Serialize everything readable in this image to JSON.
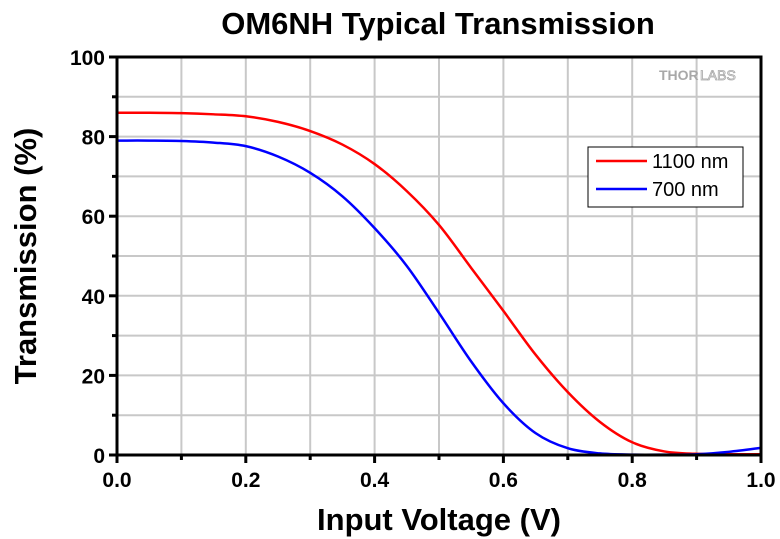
{
  "chart_data": {
    "type": "line",
    "title": "OM6NH Typical Transmission",
    "xlabel": "Input Voltage (V)",
    "ylabel": "Transmission (%)",
    "xlim": [
      0.0,
      1.0
    ],
    "ylim": [
      0,
      100
    ],
    "xticks": [
      "0.0",
      "0.2",
      "0.4",
      "0.6",
      "0.8",
      "1.0"
    ],
    "xtick_values": [
      0.0,
      0.2,
      0.4,
      0.6,
      0.8,
      1.0
    ],
    "yticks": [
      "0",
      "20",
      "40",
      "60",
      "80",
      "100"
    ],
    "ytick_values": [
      0,
      20,
      40,
      60,
      80,
      100
    ],
    "grid": true,
    "legend_position": "upper-right",
    "watermark": "THORLABS",
    "series": [
      {
        "name": "1100 nm",
        "color": "#ff0000",
        "x": [
          0.0,
          0.05,
          0.1,
          0.15,
          0.2,
          0.25,
          0.3,
          0.35,
          0.4,
          0.45,
          0.5,
          0.55,
          0.6,
          0.65,
          0.7,
          0.75,
          0.8,
          0.85,
          0.9,
          0.95,
          1.0
        ],
        "y": [
          86.0,
          86.0,
          85.9,
          85.6,
          85.1,
          83.7,
          81.4,
          78.0,
          73.1,
          66.3,
          57.8,
          47.0,
          36.2,
          25.2,
          15.8,
          8.3,
          3.2,
          0.9,
          0.3,
          0.2,
          0.2
        ]
      },
      {
        "name": "700 nm",
        "color": "#0000ff",
        "x": [
          0.0,
          0.05,
          0.1,
          0.15,
          0.2,
          0.25,
          0.3,
          0.35,
          0.4,
          0.45,
          0.5,
          0.55,
          0.6,
          0.65,
          0.7,
          0.75,
          0.8,
          0.85,
          0.9,
          0.95,
          1.0
        ],
        "y": [
          79.0,
          79.0,
          78.9,
          78.5,
          77.6,
          75.0,
          70.9,
          65.0,
          57.0,
          47.5,
          35.7,
          23.5,
          13.0,
          5.5,
          1.7,
          0.4,
          0.1,
          0.1,
          0.2,
          0.8,
          1.8
        ]
      }
    ]
  }
}
